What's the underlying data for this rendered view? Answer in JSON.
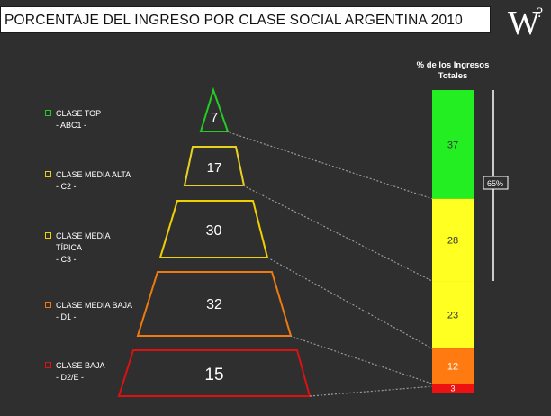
{
  "header": {
    "title": "PORCENTAJE DEL INGRESO POR CLASE SOCIAL ARGENTINA 2010",
    "logo_letter": "W",
    "logo_mark": "?"
  },
  "chart_data": {
    "type": "bar",
    "title": "PORCENTAJE DEL INGRESO POR CLASE SOCIAL ARGENTINA 2010",
    "pyramid": {
      "levels": [
        {
          "label": "CLASE TOP",
          "code": "- ABC1 -",
          "value": 7,
          "color": "#22cc22"
        },
        {
          "label": "CLASE MEDIA ALTA",
          "code": "- C2 -",
          "value": 17,
          "color": "#e8d020"
        },
        {
          "label": "CLASE MEDIA TÍPICA",
          "label_lines": [
            "CLASE MEDIA",
            "TÍPICA"
          ],
          "code": "- C3 -",
          "value": 30,
          "color": "#f0d000"
        },
        {
          "label": "CLASE MEDIA BAJA",
          "code": "- D1 -",
          "value": 32,
          "color": "#ee7a10"
        },
        {
          "label": "CLASE BAJA",
          "code": "- D2/E -",
          "value": 15,
          "color": "#dd1111"
        }
      ]
    },
    "stacked_bar": {
      "title_lines": [
        "% de los Ingresos",
        "Totales"
      ],
      "segments": [
        {
          "value": 37,
          "label": "37",
          "color": "#22ee22"
        },
        {
          "value": 28,
          "label": "28",
          "color": "#ffff22"
        },
        {
          "value": 23,
          "label": "23",
          "color": "#ffff22"
        },
        {
          "value": 12,
          "label": "12",
          "color": "#ff7a10"
        },
        {
          "value": 3,
          "label": "3",
          "color": "#ee1111"
        }
      ],
      "bracket_label": "65%"
    }
  }
}
